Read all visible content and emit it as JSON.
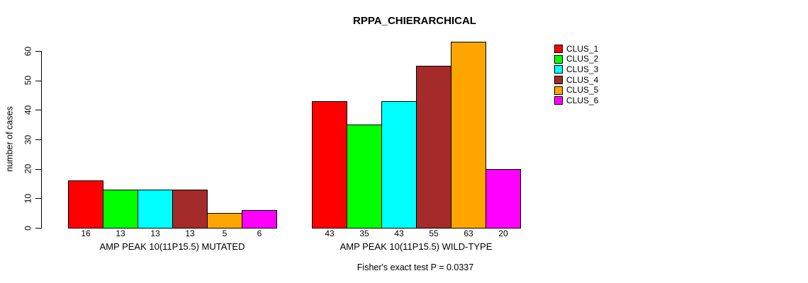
{
  "chart_data": {
    "type": "bar",
    "title": "RPPA_CHIERARCHICAL",
    "ylabel": "number of cases",
    "xlabel": "",
    "ylim": [
      0,
      60
    ],
    "yticks": [
      0,
      10,
      20,
      30,
      40,
      50,
      60
    ],
    "grid": false,
    "legend_position": "right",
    "categories": [
      "CLUS_1",
      "CLUS_2",
      "CLUS_3",
      "CLUS_4",
      "CLUS_5",
      "CLUS_6"
    ],
    "series_colors": [
      "#FF0000",
      "#00FF00",
      "#00FFFF",
      "#A52A2A",
      "#FFA500",
      "#FF00FF"
    ],
    "groups": [
      {
        "label": "AMP PEAK 10(11P15.5) MUTATED",
        "values": [
          16,
          13,
          13,
          13,
          5,
          6
        ]
      },
      {
        "label": "AMP PEAK 10(11P15.5) WILD-TYPE",
        "values": [
          43,
          35,
          43,
          55,
          63,
          20
        ]
      }
    ],
    "bar_value_labels_shown": true,
    "annotation": "Fisher's exact test P = 0.0337"
  },
  "colors": {
    "background": "#FFFFFF",
    "axis": "#000000",
    "bar_border": "#000000",
    "text": "#000000"
  }
}
